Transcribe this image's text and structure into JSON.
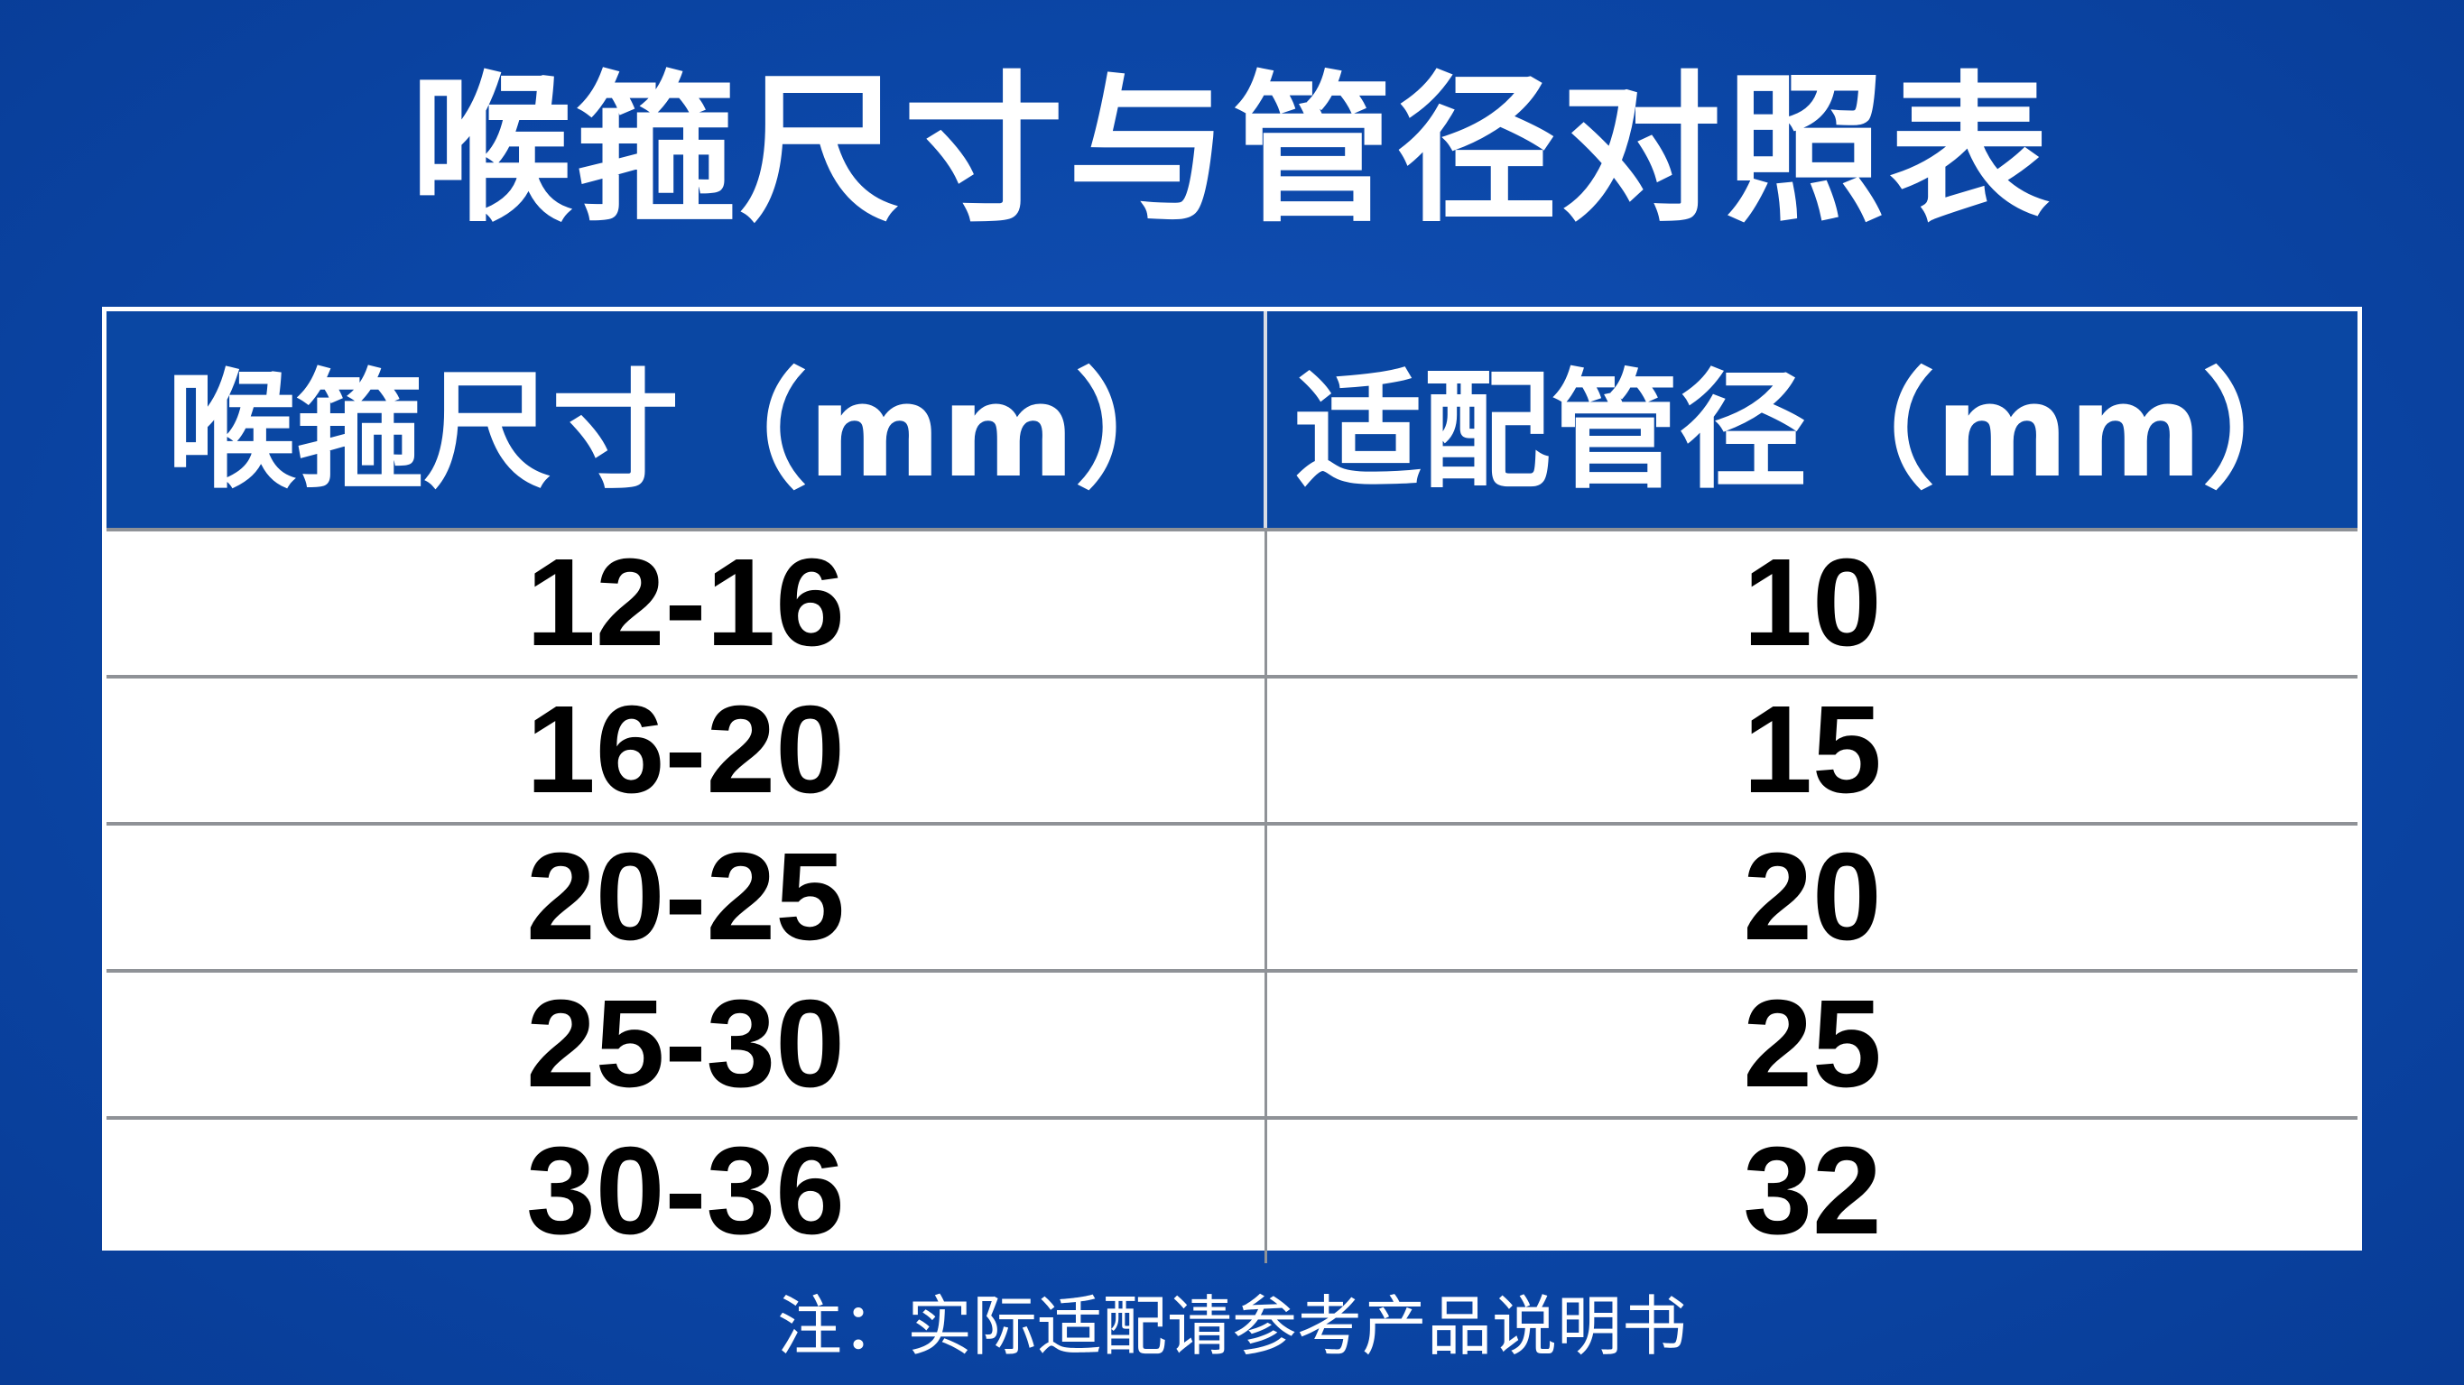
{
  "title": "喉箍尺寸与管径对照表",
  "table": {
    "headers": [
      "喉箍尺寸（mm）",
      "适配管径（mm）"
    ],
    "rows": [
      [
        "12-16",
        "10"
      ],
      [
        "16-20",
        "15"
      ],
      [
        "20-25",
        "20"
      ],
      [
        "25-30",
        "25"
      ],
      [
        "30-36",
        "32"
      ]
    ]
  },
  "note": "注：实际适配请参考产品说明书",
  "colors": {
    "background": "#0b46a6",
    "header": "#0a47a3",
    "text": "#000000"
  }
}
